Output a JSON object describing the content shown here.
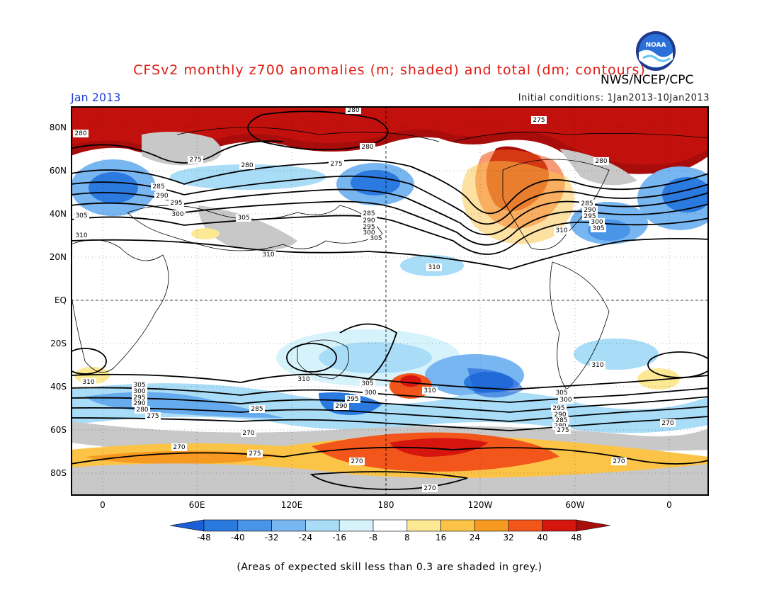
{
  "title": "CFSv2 monthly z700 anomalies (m; shaded) and total (dm; contours)",
  "agency": "NWS/NCEP/CPC",
  "month": "Jan 2013",
  "initial_conditions": "Initial conditions: 1Jan2013-10Jan2013",
  "logo_text": "NOAA",
  "lat_labels": [
    "80N",
    "60N",
    "40N",
    "20N",
    "EQ",
    "20S",
    "40S",
    "60S",
    "80S"
  ],
  "lon_labels": [
    "0",
    "60E",
    "120E",
    "180",
    "120W",
    "60W",
    "0"
  ],
  "colorbar": {
    "values": [
      "-48",
      "-40",
      "-32",
      "-24",
      "-16",
      "-8",
      "8",
      "16",
      "24",
      "32",
      "40",
      "48"
    ],
    "colors": [
      "#1a5fd6",
      "#2a7ae0",
      "#4a95e8",
      "#78b6f2",
      "#a8dcf7",
      "#d6f2fb",
      "#ffffff",
      "#fde893",
      "#fbc447",
      "#f79a22",
      "#f2561a",
      "#d7150f",
      "#a80d0b"
    ]
  },
  "contour_labels": [
    "280",
    "275",
    "280",
    "285",
    "290",
    "295",
    "300",
    "305",
    "310",
    "270"
  ],
  "footnote": "(Areas of expected skill less than 0.3 are shaded in grey.)"
}
